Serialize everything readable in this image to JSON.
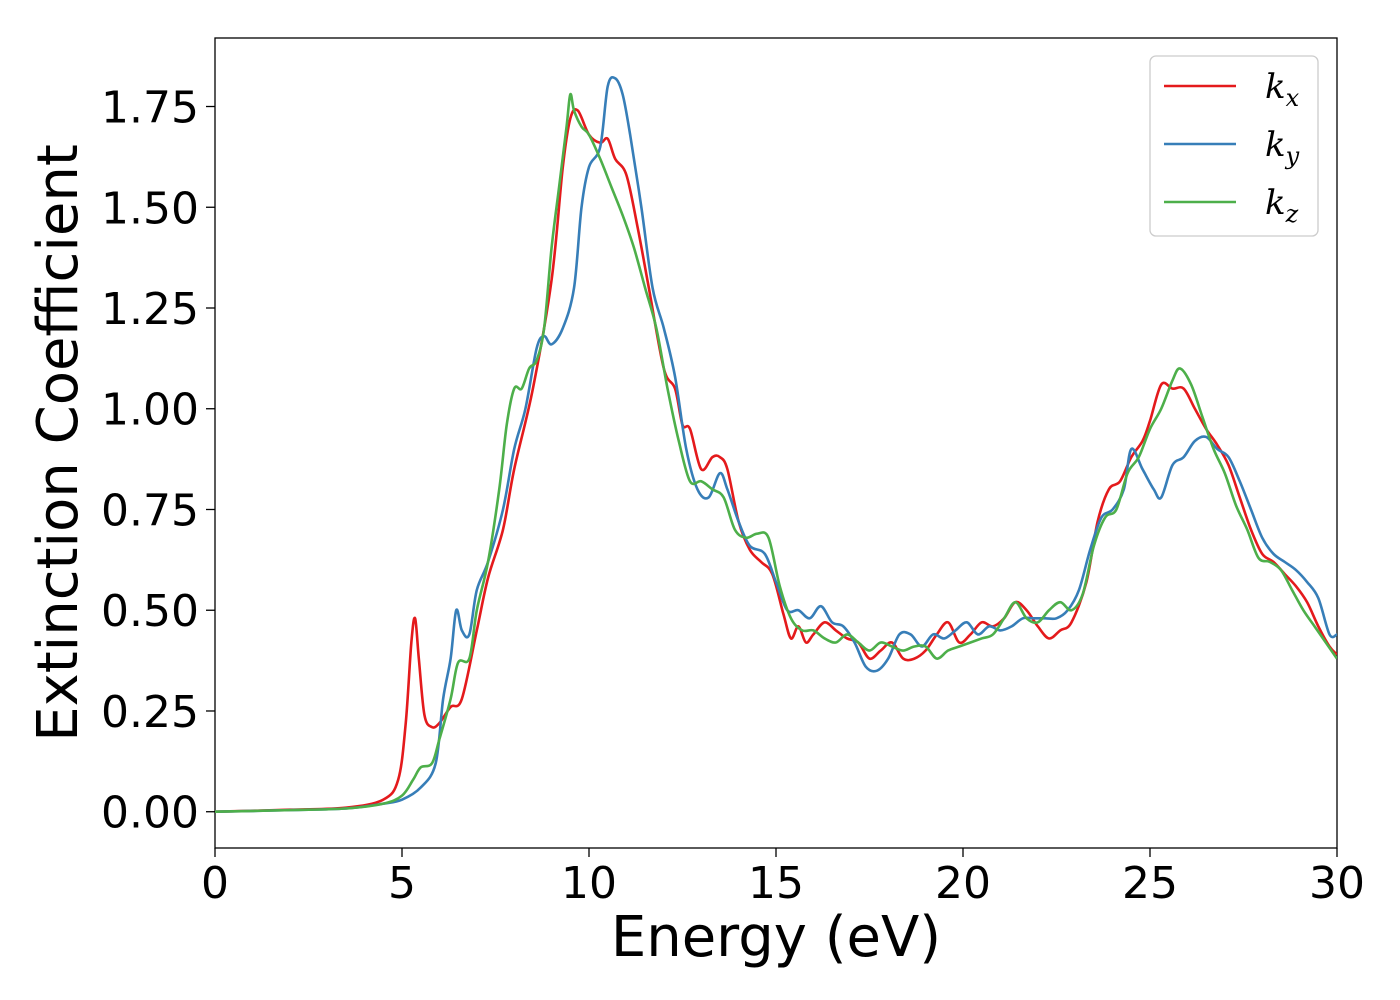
{
  "chart_data": {
    "type": "line",
    "xlabel": "Energy (eV)",
    "ylabel": "Extinction Coefficient",
    "xlim": [
      0,
      30
    ],
    "ylim": [
      -0.09,
      1.92
    ],
    "xticks": [
      0,
      5,
      10,
      15,
      20,
      25,
      30
    ],
    "yticks": [
      0.0,
      0.25,
      0.5,
      0.75,
      1.0,
      1.25,
      1.5,
      1.75
    ],
    "xtick_labels": [
      "0",
      "5",
      "10",
      "15",
      "20",
      "25",
      "30"
    ],
    "ytick_labels": [
      "0.00",
      "0.25",
      "0.50",
      "0.75",
      "1.00",
      "1.25",
      "1.50",
      "1.75"
    ],
    "grid": false,
    "legend_position": "top-right",
    "series": [
      {
        "name": "k_x",
        "label_base": "k",
        "label_sub": "x",
        "color": "#e41a1c",
        "points": [
          [
            0,
            0
          ],
          [
            2,
            0.005
          ],
          [
            3.5,
            0.01
          ],
          [
            4.5,
            0.03
          ],
          [
            4.9,
            0.08
          ],
          [
            5.1,
            0.22
          ],
          [
            5.25,
            0.42
          ],
          [
            5.35,
            0.48
          ],
          [
            5.45,
            0.38
          ],
          [
            5.6,
            0.24
          ],
          [
            5.8,
            0.21
          ],
          [
            6.0,
            0.22
          ],
          [
            6.3,
            0.26
          ],
          [
            6.6,
            0.28
          ],
          [
            7.0,
            0.45
          ],
          [
            7.3,
            0.58
          ],
          [
            7.7,
            0.7
          ],
          [
            8.0,
            0.85
          ],
          [
            8.5,
            1.05
          ],
          [
            9.0,
            1.32
          ],
          [
            9.3,
            1.6
          ],
          [
            9.5,
            1.72
          ],
          [
            9.7,
            1.74
          ],
          [
            10.0,
            1.68
          ],
          [
            10.3,
            1.66
          ],
          [
            10.5,
            1.67
          ],
          [
            10.7,
            1.62
          ],
          [
            11.0,
            1.58
          ],
          [
            11.3,
            1.45
          ],
          [
            11.6,
            1.3
          ],
          [
            12.0,
            1.1
          ],
          [
            12.3,
            1.05
          ],
          [
            12.5,
            0.96
          ],
          [
            12.7,
            0.95
          ],
          [
            13.0,
            0.85
          ],
          [
            13.3,
            0.88
          ],
          [
            13.5,
            0.88
          ],
          [
            13.7,
            0.85
          ],
          [
            14.0,
            0.72
          ],
          [
            14.3,
            0.65
          ],
          [
            14.6,
            0.62
          ],
          [
            14.9,
            0.59
          ],
          [
            15.2,
            0.49
          ],
          [
            15.4,
            0.43
          ],
          [
            15.6,
            0.46
          ],
          [
            15.8,
            0.42
          ],
          [
            16.0,
            0.44
          ],
          [
            16.3,
            0.47
          ],
          [
            16.6,
            0.45
          ],
          [
            16.9,
            0.43
          ],
          [
            17.2,
            0.42
          ],
          [
            17.5,
            0.38
          ],
          [
            17.8,
            0.4
          ],
          [
            18.1,
            0.42
          ],
          [
            18.4,
            0.38
          ],
          [
            18.7,
            0.38
          ],
          [
            19.0,
            0.4
          ],
          [
            19.3,
            0.44
          ],
          [
            19.6,
            0.47
          ],
          [
            19.9,
            0.42
          ],
          [
            20.2,
            0.44
          ],
          [
            20.5,
            0.47
          ],
          [
            20.8,
            0.46
          ],
          [
            21.1,
            0.48
          ],
          [
            21.4,
            0.52
          ],
          [
            21.7,
            0.5
          ],
          [
            22.0,
            0.46
          ],
          [
            22.3,
            0.43
          ],
          [
            22.6,
            0.45
          ],
          [
            22.9,
            0.47
          ],
          [
            23.3,
            0.57
          ],
          [
            23.6,
            0.72
          ],
          [
            23.9,
            0.8
          ],
          [
            24.2,
            0.82
          ],
          [
            24.5,
            0.88
          ],
          [
            24.8,
            0.92
          ],
          [
            25.0,
            0.97
          ],
          [
            25.3,
            1.06
          ],
          [
            25.6,
            1.05
          ],
          [
            25.9,
            1.05
          ],
          [
            26.2,
            1.0
          ],
          [
            26.5,
            0.95
          ],
          [
            26.8,
            0.91
          ],
          [
            27.1,
            0.86
          ],
          [
            27.4,
            0.78
          ],
          [
            27.7,
            0.7
          ],
          [
            28.0,
            0.64
          ],
          [
            28.3,
            0.62
          ],
          [
            28.6,
            0.59
          ],
          [
            28.9,
            0.56
          ],
          [
            29.2,
            0.52
          ],
          [
            29.5,
            0.46
          ],
          [
            29.8,
            0.41
          ],
          [
            30.0,
            0.39
          ]
        ]
      },
      {
        "name": "k_y",
        "label_base": "k",
        "label_sub": "y",
        "color": "#377eb8",
        "points": [
          [
            0,
            0
          ],
          [
            2,
            0.004
          ],
          [
            3.5,
            0.008
          ],
          [
            4.5,
            0.02
          ],
          [
            5.0,
            0.03
          ],
          [
            5.5,
            0.06
          ],
          [
            5.9,
            0.12
          ],
          [
            6.1,
            0.28
          ],
          [
            6.3,
            0.38
          ],
          [
            6.45,
            0.5
          ],
          [
            6.6,
            0.45
          ],
          [
            6.8,
            0.44
          ],
          [
            7.0,
            0.55
          ],
          [
            7.3,
            0.62
          ],
          [
            7.7,
            0.75
          ],
          [
            8.0,
            0.9
          ],
          [
            8.3,
            1.0
          ],
          [
            8.6,
            1.15
          ],
          [
            8.8,
            1.18
          ],
          [
            9.0,
            1.16
          ],
          [
            9.3,
            1.2
          ],
          [
            9.6,
            1.3
          ],
          [
            9.8,
            1.5
          ],
          [
            10.0,
            1.6
          ],
          [
            10.3,
            1.65
          ],
          [
            10.5,
            1.8
          ],
          [
            10.7,
            1.82
          ],
          [
            10.9,
            1.78
          ],
          [
            11.1,
            1.68
          ],
          [
            11.4,
            1.5
          ],
          [
            11.7,
            1.3
          ],
          [
            12.0,
            1.2
          ],
          [
            12.3,
            1.08
          ],
          [
            12.6,
            0.9
          ],
          [
            12.9,
            0.8
          ],
          [
            13.2,
            0.78
          ],
          [
            13.5,
            0.84
          ],
          [
            13.7,
            0.8
          ],
          [
            14.0,
            0.72
          ],
          [
            14.3,
            0.66
          ],
          [
            14.7,
            0.64
          ],
          [
            15.0,
            0.57
          ],
          [
            15.3,
            0.5
          ],
          [
            15.6,
            0.5
          ],
          [
            15.9,
            0.48
          ],
          [
            16.2,
            0.51
          ],
          [
            16.5,
            0.47
          ],
          [
            16.8,
            0.46
          ],
          [
            17.1,
            0.42
          ],
          [
            17.4,
            0.36
          ],
          [
            17.7,
            0.35
          ],
          [
            18.0,
            0.38
          ],
          [
            18.3,
            0.44
          ],
          [
            18.6,
            0.44
          ],
          [
            18.9,
            0.41
          ],
          [
            19.2,
            0.44
          ],
          [
            19.5,
            0.43
          ],
          [
            19.8,
            0.45
          ],
          [
            20.1,
            0.47
          ],
          [
            20.4,
            0.44
          ],
          [
            20.7,
            0.46
          ],
          [
            21.0,
            0.45
          ],
          [
            21.3,
            0.46
          ],
          [
            21.6,
            0.48
          ],
          [
            21.9,
            0.48
          ],
          [
            22.2,
            0.48
          ],
          [
            22.5,
            0.48
          ],
          [
            22.8,
            0.5
          ],
          [
            23.1,
            0.55
          ],
          [
            23.4,
            0.65
          ],
          [
            23.7,
            0.73
          ],
          [
            24.0,
            0.75
          ],
          [
            24.3,
            0.8
          ],
          [
            24.5,
            0.9
          ],
          [
            24.8,
            0.85
          ],
          [
            25.1,
            0.8
          ],
          [
            25.3,
            0.78
          ],
          [
            25.6,
            0.86
          ],
          [
            25.9,
            0.88
          ],
          [
            26.2,
            0.92
          ],
          [
            26.5,
            0.93
          ],
          [
            26.8,
            0.9
          ],
          [
            27.1,
            0.88
          ],
          [
            27.4,
            0.82
          ],
          [
            27.7,
            0.75
          ],
          [
            28.0,
            0.68
          ],
          [
            28.3,
            0.64
          ],
          [
            28.6,
            0.62
          ],
          [
            28.9,
            0.6
          ],
          [
            29.2,
            0.57
          ],
          [
            29.5,
            0.53
          ],
          [
            29.8,
            0.44
          ],
          [
            30.0,
            0.44
          ]
        ]
      },
      {
        "name": "k_z",
        "label_base": "k",
        "label_sub": "z",
        "color": "#4daf4a",
        "points": [
          [
            0,
            0
          ],
          [
            2,
            0.004
          ],
          [
            3.5,
            0.008
          ],
          [
            4.5,
            0.02
          ],
          [
            5.0,
            0.04
          ],
          [
            5.3,
            0.08
          ],
          [
            5.5,
            0.11
          ],
          [
            5.8,
            0.12
          ],
          [
            6.0,
            0.18
          ],
          [
            6.3,
            0.28
          ],
          [
            6.5,
            0.37
          ],
          [
            6.8,
            0.38
          ],
          [
            7.0,
            0.5
          ],
          [
            7.3,
            0.62
          ],
          [
            7.6,
            0.8
          ],
          [
            7.8,
            0.96
          ],
          [
            8.0,
            1.05
          ],
          [
            8.2,
            1.05
          ],
          [
            8.4,
            1.1
          ],
          [
            8.6,
            1.12
          ],
          [
            8.8,
            1.2
          ],
          [
            9.0,
            1.4
          ],
          [
            9.2,
            1.55
          ],
          [
            9.4,
            1.7
          ],
          [
            9.5,
            1.78
          ],
          [
            9.6,
            1.74
          ],
          [
            9.8,
            1.7
          ],
          [
            10.0,
            1.68
          ],
          [
            10.3,
            1.62
          ],
          [
            10.6,
            1.55
          ],
          [
            10.9,
            1.48
          ],
          [
            11.2,
            1.4
          ],
          [
            11.5,
            1.3
          ],
          [
            11.8,
            1.2
          ],
          [
            12.1,
            1.05
          ],
          [
            12.4,
            0.92
          ],
          [
            12.7,
            0.82
          ],
          [
            13.0,
            0.82
          ],
          [
            13.3,
            0.8
          ],
          [
            13.6,
            0.78
          ],
          [
            13.9,
            0.7
          ],
          [
            14.2,
            0.68
          ],
          [
            14.5,
            0.69
          ],
          [
            14.8,
            0.68
          ],
          [
            15.1,
            0.56
          ],
          [
            15.4,
            0.48
          ],
          [
            15.7,
            0.45
          ],
          [
            16.0,
            0.45
          ],
          [
            16.3,
            0.43
          ],
          [
            16.6,
            0.42
          ],
          [
            16.9,
            0.44
          ],
          [
            17.2,
            0.42
          ],
          [
            17.5,
            0.4
          ],
          [
            17.8,
            0.42
          ],
          [
            18.1,
            0.41
          ],
          [
            18.4,
            0.4
          ],
          [
            18.7,
            0.41
          ],
          [
            19.0,
            0.41
          ],
          [
            19.3,
            0.38
          ],
          [
            19.6,
            0.4
          ],
          [
            19.9,
            0.41
          ],
          [
            20.2,
            0.42
          ],
          [
            20.5,
            0.43
          ],
          [
            20.8,
            0.44
          ],
          [
            21.1,
            0.48
          ],
          [
            21.4,
            0.52
          ],
          [
            21.7,
            0.48
          ],
          [
            22.0,
            0.47
          ],
          [
            22.3,
            0.5
          ],
          [
            22.6,
            0.52
          ],
          [
            22.9,
            0.5
          ],
          [
            23.2,
            0.54
          ],
          [
            23.5,
            0.66
          ],
          [
            23.8,
            0.73
          ],
          [
            24.1,
            0.75
          ],
          [
            24.4,
            0.84
          ],
          [
            24.7,
            0.88
          ],
          [
            25.0,
            0.95
          ],
          [
            25.3,
            1.0
          ],
          [
            25.6,
            1.07
          ],
          [
            25.8,
            1.1
          ],
          [
            26.1,
            1.06
          ],
          [
            26.4,
            0.98
          ],
          [
            26.7,
            0.9
          ],
          [
            27.0,
            0.84
          ],
          [
            27.3,
            0.76
          ],
          [
            27.6,
            0.7
          ],
          [
            27.9,
            0.63
          ],
          [
            28.2,
            0.62
          ],
          [
            28.5,
            0.6
          ],
          [
            28.8,
            0.55
          ],
          [
            29.1,
            0.5
          ],
          [
            29.4,
            0.46
          ],
          [
            29.7,
            0.42
          ],
          [
            30.0,
            0.38
          ]
        ]
      }
    ]
  }
}
